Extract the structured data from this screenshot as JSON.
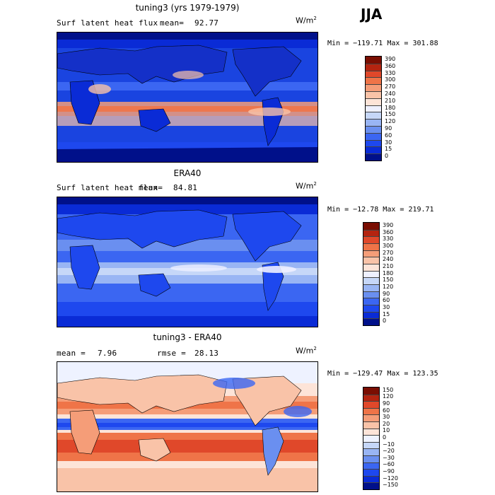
{
  "season": "JJA",
  "chart_data": [
    {
      "type": "heatmap",
      "title": "tuning3 (yrs 1979-1979)",
      "variable": "Surf latent heat flux",
      "stat_label": "mean=",
      "stat_value": "92.77",
      "units_base": "W/m",
      "units_exp": "2",
      "min_label": "Min =",
      "min": "−119.71",
      "max_label": "Max =",
      "max": "301.88",
      "levels": [
        "0",
        "15",
        "30",
        "60",
        "90",
        "120",
        "150",
        "180",
        "210",
        "240",
        "270",
        "300",
        "330",
        "360",
        "390"
      ],
      "colors": [
        "#00108a",
        "#0a2bd6",
        "#1e48ee",
        "#3b66f2",
        "#6a8ff0",
        "#99b5f4",
        "#c6d7f8",
        "#eef0ff",
        "#fde4d8",
        "#f9c3a8",
        "#f59d78",
        "#ef7448",
        "#e0482a",
        "#b42410",
        "#7a0e02"
      ]
    },
    {
      "type": "heatmap",
      "title": "ERA40",
      "variable": "Surf latent heat flux",
      "stat_label": "mean=",
      "stat_value": "84.81",
      "units_base": "W/m",
      "units_exp": "2",
      "min_label": "Min =",
      "min": "−12.78",
      "max_label": "Max =",
      "max": "219.71",
      "levels": [
        "0",
        "15",
        "30",
        "60",
        "90",
        "120",
        "150",
        "180",
        "210",
        "240",
        "270",
        "300",
        "330",
        "360",
        "390"
      ],
      "colors": [
        "#00108a",
        "#0a2bd6",
        "#1e48ee",
        "#3b66f2",
        "#6a8ff0",
        "#99b5f4",
        "#c6d7f8",
        "#eef0ff",
        "#fde4d8",
        "#f9c3a8",
        "#f59d78",
        "#ef7448",
        "#e0482a",
        "#b42410",
        "#7a0e02"
      ]
    },
    {
      "type": "heatmap",
      "title": "tuning3 - ERA40",
      "stat_label": "mean =",
      "stat_value": "7.96",
      "stat2_label": "rmse =",
      "stat2_value": "28.13",
      "units_base": "W/m",
      "units_exp": "2",
      "min_label": "Min =",
      "min": "−129.47",
      "max_label": "Max =",
      "max": "123.35",
      "levels": [
        "−150",
        "−120",
        "−90",
        "−60",
        "−30",
        "−20",
        "−10",
        "0",
        "10",
        "20",
        "30",
        "60",
        "90",
        "120",
        "150"
      ],
      "colors": [
        "#00108a",
        "#0a2bd6",
        "#1e48ee",
        "#3b66f2",
        "#6a8ff0",
        "#99b5f4",
        "#c6d7f8",
        "#eef2ff",
        "#fde4d8",
        "#f9c3a8",
        "#f59d78",
        "#ef7448",
        "#e0482a",
        "#b42410",
        "#7a0e02"
      ]
    }
  ]
}
